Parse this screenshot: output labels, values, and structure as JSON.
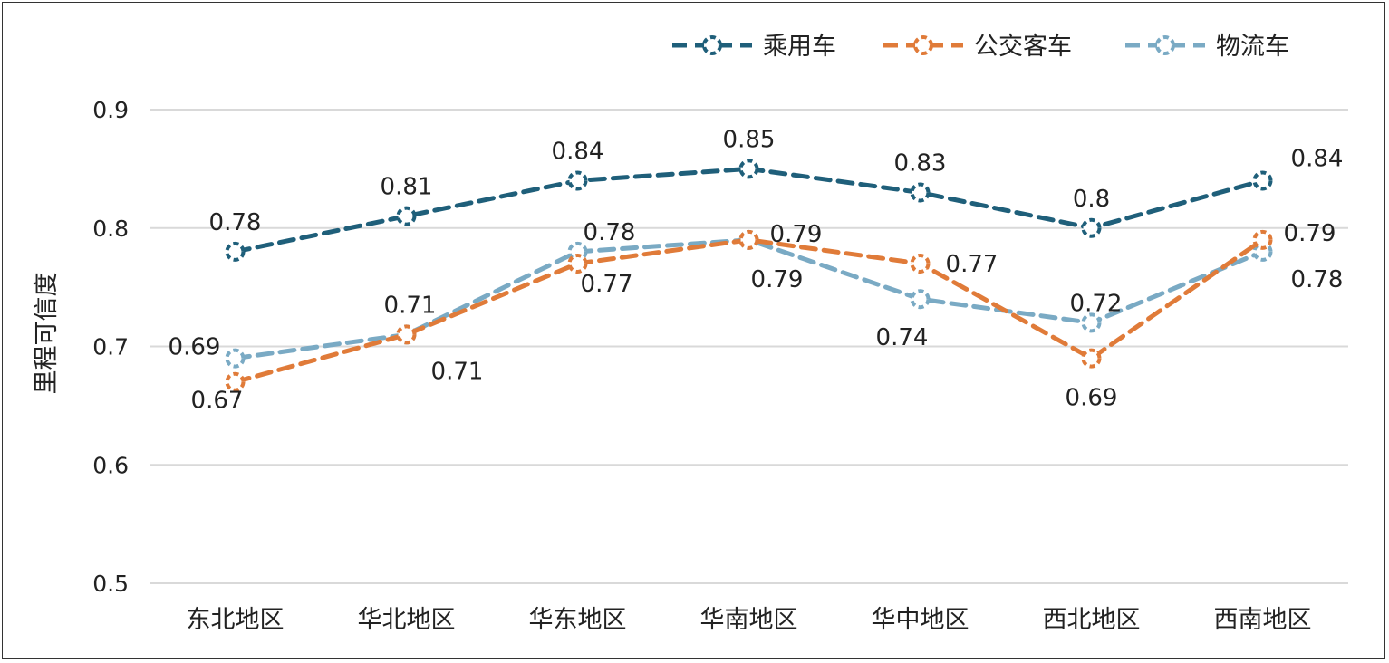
{
  "chart_data": {
    "type": "line",
    "ylabel": "里程可信度",
    "ylim": [
      0.5,
      0.9
    ],
    "yticks": [
      "0.5",
      "0.6",
      "0.7",
      "0.8",
      "0.9"
    ],
    "grid": true,
    "legend_position": "top-right",
    "categories": [
      "东北地区",
      "华北地区",
      "华东地区",
      "华南地区",
      "华中地区",
      "西北地区",
      "西南地区"
    ],
    "series": [
      {
        "name": "乘用车",
        "color": "#1f5f7a",
        "values": [
          0.78,
          0.81,
          0.84,
          0.85,
          0.83,
          0.8,
          0.84
        ],
        "labels": [
          "0.78",
          "0.81",
          "0.84",
          "0.85",
          "0.83",
          "0.8",
          "0.84"
        ]
      },
      {
        "name": "公交客车",
        "color": "#e07b39",
        "values": [
          0.67,
          0.71,
          0.77,
          0.79,
          0.77,
          0.69,
          0.79
        ],
        "labels": [
          "0.67",
          "0.71",
          "0.77",
          "0.79",
          "0.77",
          "0.69",
          "0.79"
        ]
      },
      {
        "name": "物流车",
        "color": "#7aaac4",
        "values": [
          0.69,
          0.71,
          0.78,
          0.79,
          0.74,
          0.72,
          0.78
        ],
        "labels": [
          "0.69",
          "0.71",
          "0.78",
          "0.79",
          "0.74",
          "0.72",
          "0.78"
        ]
      }
    ]
  }
}
